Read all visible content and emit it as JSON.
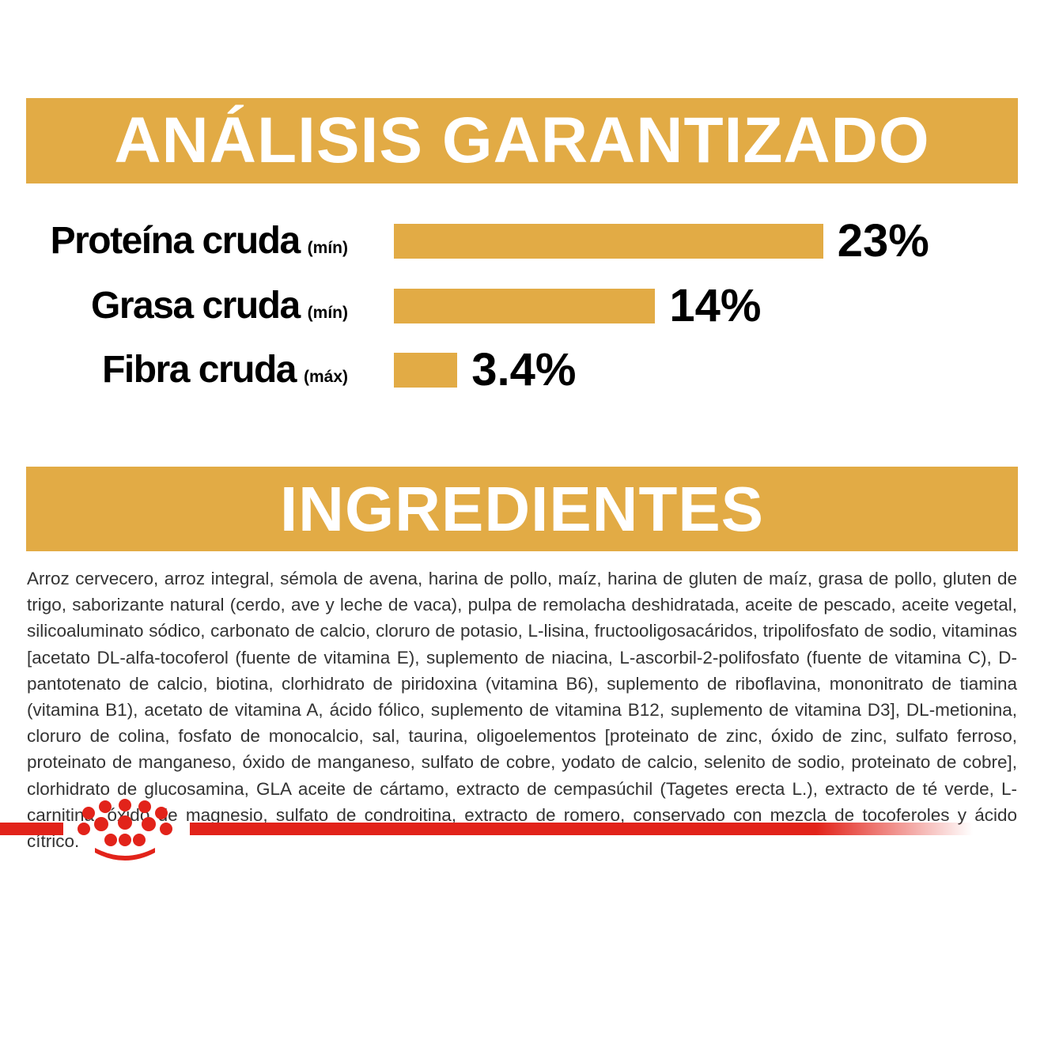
{
  "analysis": {
    "title": "ANÁLISIS GARANTIZADO",
    "rows": [
      {
        "label": "Proteína cruda",
        "qualifier": "(mín)",
        "value": 23,
        "value_label": "23%"
      },
      {
        "label": "Grasa cruda",
        "qualifier": "(mín)",
        "value": 14,
        "value_label": "14%"
      },
      {
        "label": "Fibra cruda",
        "qualifier": "(máx)",
        "value": 3.4,
        "value_label": "3.4%"
      }
    ]
  },
  "ingredients": {
    "title": "INGREDIENTES",
    "text": "Arroz cervecero, arroz integral, sémola de avena, harina de pollo, maíz, harina de gluten de maíz, grasa de pollo, gluten de trigo, saborizante natural (cerdo, ave y leche de vaca), pulpa de remolacha deshidratada, aceite de pescado, aceite vegetal, silicoaluminato sódico, carbonato de calcio, cloruro de potasio, L-lisina, fructooligosacáridos, tripolifosfato de sodio, vitaminas [acetato DL-alfa-tocoferol (fuente de vitamina E), suplemento de niacina, L-ascorbil-2-polifosfato (fuente de vitamina C), D-pantotenato de calcio, biotina, clorhidrato de piridoxina (vitamina B6), suplemento de riboflavina, mononitrato de tiamina (vitamina B1), acetato de vitamina A, ácido fólico, suplemento de vitamina B12, suplemento de vitamina D3], DL-metionina, cloruro de colina, fosfato de monocalcio, sal, taurina, oligoelementos [proteinato de zinc, óxido de zinc, sulfato ferroso, proteinato de manganeso, óxido de manganeso, sulfato de cobre, yodato de calcio, selenito de sodio, proteinato de cobre], clorhidrato de glucosamina, GLA aceite de cártamo, extracto de cempasúchil (Tagetes erecta L.), extracto de té verde, L-carnitina, óxido de magnesio, sulfato de condroitina, extracto de romero, conservado con mezcla de tocoferoles y ácido cítrico."
  }
}
